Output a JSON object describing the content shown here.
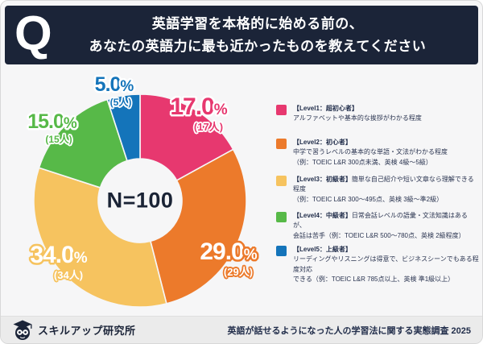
{
  "header": {
    "q_mark": "Q",
    "title_line1": "英語学習を本格的に始める前の、",
    "title_line2": "あなたの英語力に最も近かったものを教えてください"
  },
  "chart_data": {
    "type": "pie",
    "subtype": "donut",
    "title": "英語学習を本格的に始める前の、あなたの英語力に最も近かったものを教えてください",
    "center_label": "N=100",
    "sample_size": 100,
    "direction": "clockwise",
    "start_angle_deg": 0,
    "segments": [
      {
        "label": "Level1：超初心者",
        "value": 17.0,
        "count": 17,
        "pct": "17.0",
        "unit": "%",
        "count_display": "(17人)",
        "color": "#E7386F"
      },
      {
        "label": "Level2：初心者",
        "value": 29.0,
        "count": 29,
        "pct": "29.0",
        "unit": "%",
        "count_display": "(29人)",
        "color": "#EC7A2B"
      },
      {
        "label": "Level3：初級者",
        "value": 34.0,
        "count": 34,
        "pct": "34.0",
        "unit": "%",
        "count_display": "(34人)",
        "color": "#F6C35F"
      },
      {
        "label": "Level4：中級者",
        "value": 15.0,
        "count": 15,
        "pct": "15.0",
        "unit": "%",
        "count_display": "(15人)",
        "color": "#57B948"
      },
      {
        "label": "Level5：上級者",
        "value": 5.0,
        "count": 5,
        "pct": "5.0",
        "unit": "%",
        "count_display": "(5人)",
        "color": "#1474BA"
      }
    ]
  },
  "legend": {
    "items": [
      {
        "color": "#E7386F",
        "title": "【Level1：超初心者】",
        "desc": "\nアルファベットや基本的な挨拶がわかる程度"
      },
      {
        "color": "#EC7A2B",
        "title": "【Level2：初心者】",
        "desc": "\n中学で習うレベルの基本的な単語・文法がわかる程度\n（例：TOEIC L&R 300点未満、英検 4級〜5級）"
      },
      {
        "color": "#F6C35F",
        "title": "【Level3：初級者】",
        "desc": "簡単な自己紹介や短い文章なら理解できる程度\n（例：TOEIC L&R 300〜495点、英検 3級〜準2級）"
      },
      {
        "color": "#57B948",
        "title": "【Level4：中級者】",
        "desc": "日常会話レベルの語彙・文法知識はあるが、\n会話は苦手（例：TOEIC L&R 500〜780点、英検 2級程度）"
      },
      {
        "color": "#1474BA",
        "title": "【Level5：上級者】",
        "desc": "\nリーディングやリスニングは得意で、ビジネスシーンでもある程度対応\nできる（例：TOEIC L&R 785点以上、英検 準1級以上）"
      }
    ]
  },
  "footer": {
    "brand": "スキルアップ研究所",
    "source": "英語が話せるようになった人の学習法に関する実態調査 2025"
  },
  "colors": {
    "header_bg": "#1B2438",
    "page_bg": "#F6F6F7",
    "footer_bg": "#EBEBEB"
  }
}
